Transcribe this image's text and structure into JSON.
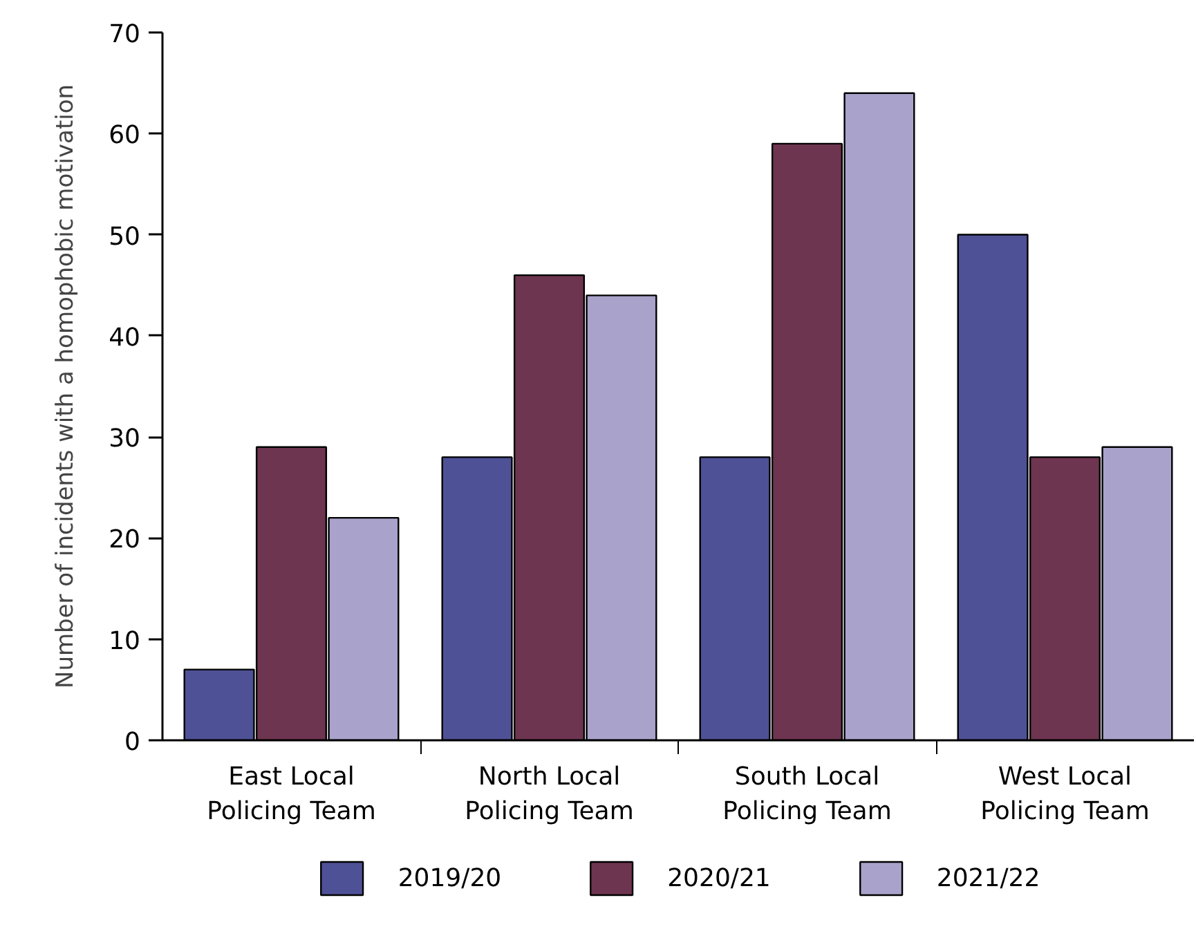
{
  "chart_data": {
    "type": "bar",
    "ylabel": "Number of incidents with a homophobic motivation",
    "categories": [
      "East Local\nPolicing Team",
      "North Local\nPolicing Team",
      "South Local\nPolicing Team",
      "West Local\nPolicing Team"
    ],
    "series": [
      {
        "name": "2019/20",
        "color": "#4f5196",
        "values": [
          7,
          28,
          28,
          50
        ]
      },
      {
        "name": "2020/21",
        "color": "#6e3550",
        "values": [
          29,
          46,
          59,
          28
        ]
      },
      {
        "name": "2021/22",
        "color": "#a9a3cb",
        "values": [
          22,
          44,
          64,
          29
        ]
      }
    ],
    "ylim": [
      0,
      70
    ],
    "yticks": [
      0,
      10,
      20,
      30,
      40,
      50,
      60,
      70
    ],
    "grid": false,
    "legend": "bottom"
  }
}
